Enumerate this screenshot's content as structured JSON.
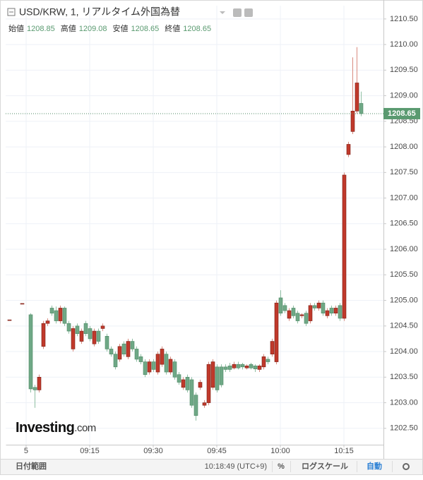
{
  "chart_data": {
    "type": "candlestick",
    "title": "USD/KRW, 1, リアルタイム外国為替",
    "ohlc_summary": [
      {
        "label": "始値",
        "value": 1208.85
      },
      {
        "label": "高値",
        "value": 1209.08
      },
      {
        "label": "安値",
        "value": 1208.65
      },
      {
        "label": "終値",
        "value": 1208.65
      }
    ],
    "up_color": "#c0392b",
    "down_color": "#6fa886",
    "series": [
      {
        "x": [
          -4,
          -1,
          1,
          2,
          3,
          4,
          5,
          6,
          7,
          8,
          9,
          10,
          11,
          12,
          13,
          14,
          15,
          16,
          17,
          18,
          19,
          20,
          21,
          22,
          23,
          24,
          25,
          26,
          27,
          28,
          29,
          30,
          31,
          32,
          33,
          34,
          35,
          36,
          37,
          38,
          39,
          40,
          41,
          42,
          43,
          44,
          45,
          46,
          47,
          48,
          49,
          50,
          51,
          52,
          53,
          54,
          55,
          56,
          57,
          58,
          59,
          60,
          61,
          62,
          63,
          64,
          65,
          66,
          67,
          68,
          69,
          70,
          71,
          72,
          73,
          74,
          75,
          76,
          77,
          78,
          79
        ],
        "open": [
          1204.62,
          1204.94,
          1204.72,
          1203.3,
          1203.25,
          1204.1,
          1204.55,
          1204.85,
          1204.8,
          1204.6,
          1204.85,
          1204.55,
          1204.05,
          1204.5,
          1204.2,
          1204.55,
          1204.45,
          1204.15,
          1204.4,
          1204.45,
          1204.3,
          1204.05,
          1203.95,
          1203.85,
          1204.15,
          1203.9,
          1204.2,
          1204.05,
          1203.9,
          1203.8,
          1203.6,
          1203.8,
          1203.6,
          1203.75,
          1203.95,
          1203.6,
          1203.8,
          1203.55,
          1203.3,
          1203.5,
          1203.45,
          1203.15,
          1203.3,
          1202.95,
          1203.0,
          1203.3,
          1203.7,
          1203.7,
          1203.7,
          1203.72,
          1203.68,
          1203.75,
          1203.75,
          1203.68,
          1203.75,
          1203.72,
          1203.65,
          1203.7,
          1203.85,
          1203.95,
          1203.8,
          1205.05,
          1204.9,
          1204.65,
          1204.85,
          1204.75,
          1204.7,
          1204.75,
          1204.6,
          1204.9,
          1204.85,
          1204.95,
          1204.7,
          1204.85,
          1204.75,
          1204.9,
          1204.65,
          1207.85,
          1208.3,
          1208.7,
          1208.85
        ],
        "high": [
          1204.62,
          1204.94,
          1204.75,
          1203.35,
          1203.55,
          1204.6,
          1204.65,
          1204.9,
          1204.88,
          1204.9,
          1204.88,
          1204.6,
          1204.5,
          1204.55,
          1204.45,
          1204.6,
          1204.5,
          1204.45,
          1204.45,
          1204.55,
          1204.35,
          1204.1,
          1204.0,
          1204.15,
          1204.2,
          1204.25,
          1204.25,
          1204.1,
          1203.95,
          1203.85,
          1203.85,
          1203.85,
          1204.0,
          1204.1,
          1204.0,
          1203.9,
          1203.85,
          1203.6,
          1203.5,
          1203.55,
          1203.5,
          1203.2,
          1203.45,
          1203.05,
          1203.8,
          1203.85,
          1203.75,
          1203.75,
          1203.75,
          1203.78,
          1203.8,
          1203.8,
          1203.78,
          1203.75,
          1203.78,
          1203.75,
          1203.75,
          1203.95,
          1203.9,
          1204.25,
          1205.0,
          1205.2,
          1204.95,
          1204.85,
          1204.9,
          1204.8,
          1204.75,
          1204.8,
          1204.95,
          1204.95,
          1205.0,
          1205.0,
          1204.85,
          1204.9,
          1204.9,
          1204.95,
          1207.5,
          1208.1,
          1209.75,
          1209.95,
          1209.08
        ],
        "low": [
          1204.62,
          1204.94,
          1203.2,
          1202.9,
          1203.2,
          1204.05,
          1204.5,
          1204.7,
          1204.55,
          1204.55,
          1204.5,
          1204.35,
          1204.0,
          1204.3,
          1204.15,
          1204.3,
          1204.2,
          1204.1,
          1204.15,
          1204.4,
          1204.0,
          1203.9,
          1203.65,
          1203.8,
          1203.9,
          1203.85,
          1204.0,
          1203.8,
          1203.75,
          1203.5,
          1203.55,
          1203.6,
          1203.55,
          1203.7,
          1203.55,
          1203.55,
          1203.45,
          1203.35,
          1203.25,
          1203.2,
          1202.9,
          1202.65,
          1203.25,
          1202.9,
          1202.95,
          1203.25,
          1203.2,
          1203.3,
          1203.6,
          1203.6,
          1203.65,
          1203.65,
          1203.65,
          1203.65,
          1203.65,
          1203.6,
          1203.6,
          1203.65,
          1203.75,
          1203.9,
          1203.75,
          1204.7,
          1204.75,
          1204.6,
          1204.65,
          1204.55,
          1204.65,
          1204.5,
          1204.55,
          1204.8,
          1204.8,
          1204.7,
          1204.65,
          1204.7,
          1204.7,
          1204.6,
          1204.6,
          1207.8,
          1208.25,
          1208.65,
          1208.6
        ],
        "close": [
          1204.62,
          1204.94,
          1203.27,
          1203.25,
          1203.5,
          1204.55,
          1204.6,
          1204.75,
          1204.6,
          1204.85,
          1204.55,
          1204.4,
          1204.45,
          1204.35,
          1204.4,
          1204.35,
          1204.25,
          1204.4,
          1204.2,
          1204.5,
          1204.05,
          1203.95,
          1203.7,
          1204.1,
          1203.95,
          1204.2,
          1204.05,
          1203.85,
          1203.8,
          1203.55,
          1203.8,
          1203.65,
          1203.95,
          1204.05,
          1203.6,
          1203.85,
          1203.5,
          1203.4,
          1203.45,
          1203.25,
          1202.95,
          1202.75,
          1203.4,
          1203.0,
          1203.75,
          1203.8,
          1203.25,
          1203.35,
          1203.65,
          1203.65,
          1203.75,
          1203.68,
          1203.7,
          1203.72,
          1203.68,
          1203.66,
          1203.72,
          1203.9,
          1203.8,
          1204.2,
          1204.95,
          1204.75,
          1204.8,
          1204.8,
          1204.7,
          1204.6,
          1204.72,
          1204.55,
          1204.9,
          1204.85,
          1204.95,
          1204.75,
          1204.8,
          1204.75,
          1204.85,
          1204.65,
          1207.45,
          1208.05,
          1208.7,
          1209.25,
          1208.65
        ]
      }
    ],
    "last_price": 1208.65,
    "xlim": [
      -4.83,
      84.33
    ],
    "xticks": [
      {
        "value": 0,
        "label": "5"
      },
      {
        "value": 15,
        "label": "09:15"
      },
      {
        "value": 30,
        "label": "09:30"
      },
      {
        "value": 45,
        "label": "09:45"
      },
      {
        "value": 60,
        "label": "10:00"
      },
      {
        "value": 75,
        "label": "10:15"
      }
    ],
    "ylim": [
      1202.18,
      1210.76
    ],
    "yticks": [
      {
        "value": 1202.5,
        "label": "1202.50"
      },
      {
        "value": 1203,
        "label": "1203.00"
      },
      {
        "value": 1203.5,
        "label": "1203.50"
      },
      {
        "value": 1204,
        "label": "1204.00"
      },
      {
        "value": 1204.5,
        "label": "1204.50"
      },
      {
        "value": 1205,
        "label": "1205.00"
      },
      {
        "value": 1205.5,
        "label": "1205.50"
      },
      {
        "value": 1206,
        "label": "1206.00"
      },
      {
        "value": 1206.5,
        "label": "1206.50"
      },
      {
        "value": 1207,
        "label": "1207.00"
      },
      {
        "value": 1207.5,
        "label": "1207.50"
      },
      {
        "value": 1208,
        "label": "1208.00"
      },
      {
        "value": 1208.5,
        "label": "1208.50"
      },
      {
        "value": 1209,
        "label": "1209.00"
      },
      {
        "value": 1209.5,
        "label": "1209.50"
      },
      {
        "value": 1210,
        "label": "1210.00"
      },
      {
        "value": 1210.5,
        "label": "1210.50"
      }
    ],
    "grid": true,
    "logo": {
      "name": "Investing",
      "suffix": ".com"
    },
    "toolbar": {
      "date_range": "日付範囲",
      "clock": "10:18:49 (UTC+9)",
      "percent": "%",
      "log_scale": "ログスケール",
      "auto": "自動"
    }
  }
}
